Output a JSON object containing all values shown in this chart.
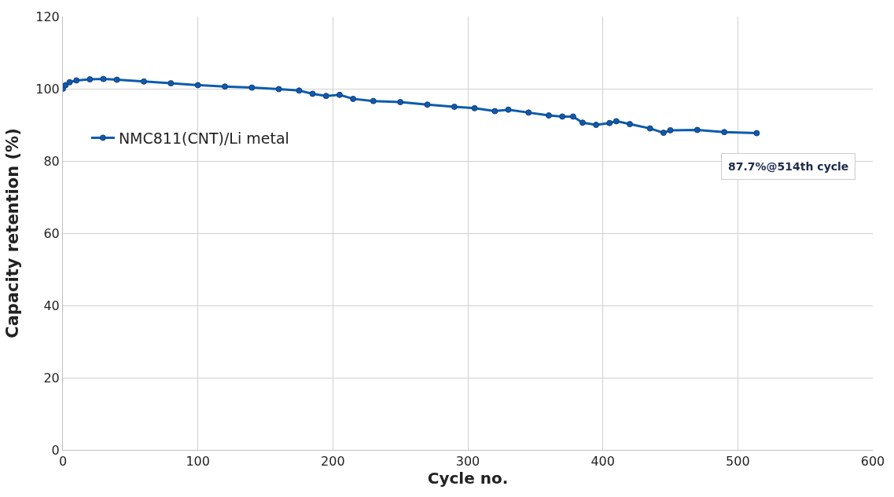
{
  "chart_data": {
    "type": "line",
    "xlabel": "Cycle no.",
    "ylabel": "Capacity retention (%)",
    "xlim": [
      0,
      600
    ],
    "xticks": [
      0,
      100,
      200,
      300,
      400,
      500,
      600
    ],
    "ylim": [
      0,
      120
    ],
    "yticks": [
      0,
      20,
      40,
      60,
      80,
      100,
      120
    ],
    "grid": true,
    "legend": "left",
    "marker": "circle",
    "line_style": "solid",
    "annotations": [
      {
        "text": "87.7%@514th cycle",
        "x": 514,
        "y": 87.7
      }
    ],
    "series": [
      {
        "name": "NMC811(CNT)/Li metal",
        "color": "#0b5cad",
        "x": [
          0,
          2,
          5,
          10,
          20,
          30,
          40,
          60,
          80,
          100,
          120,
          140,
          160,
          175,
          185,
          195,
          205,
          215,
          230,
          250,
          270,
          290,
          305,
          320,
          330,
          345,
          360,
          370,
          378,
          385,
          395,
          405,
          410,
          420,
          435,
          445,
          450,
          470,
          490,
          514
        ],
        "values": [
          100,
          101,
          101.8,
          102.3,
          102.6,
          102.7,
          102.5,
          102.0,
          101.5,
          101.0,
          100.6,
          100.3,
          99.9,
          99.5,
          98.6,
          98.0,
          98.3,
          97.2,
          96.6,
          96.3,
          95.6,
          95.0,
          94.6,
          93.8,
          94.2,
          93.4,
          92.6,
          92.3,
          92.3,
          90.6,
          90.0,
          90.5,
          91.0,
          90.2,
          89.0,
          87.8,
          88.5,
          88.6,
          88.0,
          87.7
        ]
      }
    ]
  }
}
